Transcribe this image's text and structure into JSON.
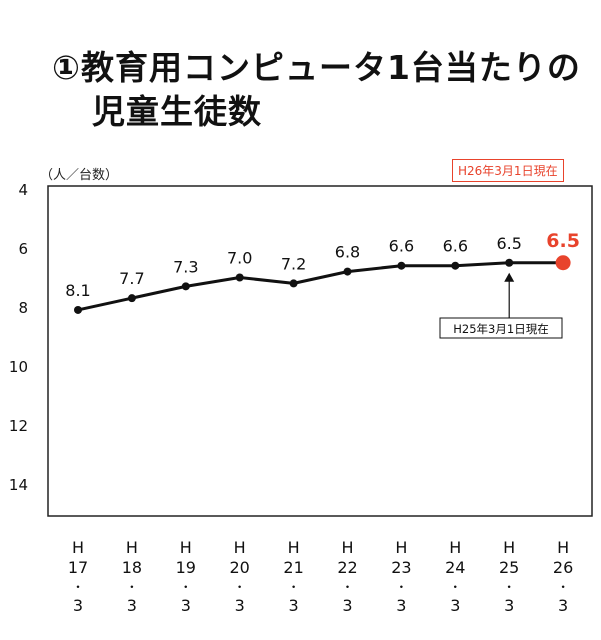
{
  "title": {
    "line1": "①教育用コンピュータ1台当たりの",
    "line2": "児童生徒数"
  },
  "colors": {
    "line": "#111111",
    "highlight": "#e8432c"
  },
  "chart_data": {
    "type": "line",
    "ylabel": "（人／台数）",
    "ylim": [
      4,
      15
    ],
    "yticks": [
      4,
      6,
      8,
      10,
      12,
      14
    ],
    "y_inverted": true,
    "grid": false,
    "categories": [
      [
        "H",
        "17",
        "・",
        "3"
      ],
      [
        "H",
        "18",
        "・",
        "3"
      ],
      [
        "H",
        "19",
        "・",
        "3"
      ],
      [
        "H",
        "20",
        "・",
        "3"
      ],
      [
        "H",
        "21",
        "・",
        "3"
      ],
      [
        "H",
        "22",
        "・",
        "3"
      ],
      [
        "H",
        "23",
        "・",
        "3"
      ],
      [
        "H",
        "24",
        "・",
        "3"
      ],
      [
        "H",
        "25",
        "・",
        "3"
      ],
      [
        "H",
        "26",
        "・",
        "3"
      ]
    ],
    "values": [
      8.1,
      7.7,
      7.3,
      7.0,
      7.2,
      6.8,
      6.6,
      6.6,
      6.5,
      6.5
    ],
    "value_labels": [
      "8.1",
      "7.7",
      "7.3",
      "7.0",
      "7.2",
      "6.8",
      "6.6",
      "6.6",
      "6.5",
      "6.5"
    ],
    "highlight_index": 9,
    "annotations": {
      "latest": "H26年3月1日現在",
      "previous": "H25年3月1日現在"
    }
  }
}
